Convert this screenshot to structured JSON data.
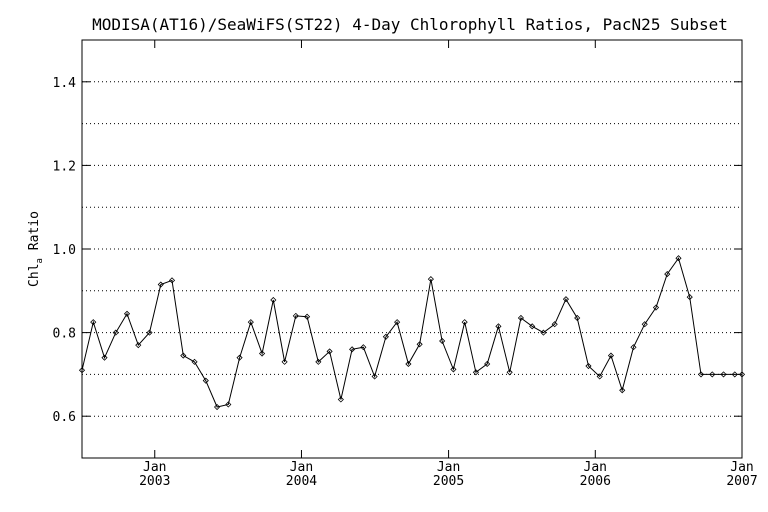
{
  "chart_data": {
    "type": "line",
    "title": "MODISA(AT16)/SeaWiFS(ST22) 4-Day Chlorophyll Ratios, PacN25 Subset",
    "ylabel_main": "Chl",
    "ylabel_sub": "a",
    "ylabel_rest": " Ratio",
    "ylim": [
      0.5,
      1.5
    ],
    "yticks": [
      0.6,
      0.8,
      1.0,
      1.2,
      1.4
    ],
    "ytick_labels": [
      "0.6",
      "0.8",
      "1.0",
      "1.2",
      "1.4"
    ],
    "gridlines": [
      0.6,
      0.7,
      0.8,
      0.9,
      1.0,
      1.1,
      1.2,
      1.3,
      1.4
    ],
    "xlim": [
      "2002-07-04",
      "2007-01-01"
    ],
    "xticks": [
      {
        "date": "2003-01-01",
        "month": "Jan",
        "year": "2003"
      },
      {
        "date": "2004-01-01",
        "month": "Jan",
        "year": "2004"
      },
      {
        "date": "2005-01-01",
        "month": "Jan",
        "year": "2005"
      },
      {
        "date": "2006-01-01",
        "month": "Jan",
        "year": "2006"
      },
      {
        "date": "2007-01-01",
        "month": "Jan",
        "year": "2007"
      }
    ],
    "grid": "horizontal dotted",
    "series": [
      {
        "x": [
          "2002-07-04",
          "2002-08-01",
          "2002-08-29",
          "2002-09-26",
          "2002-10-24",
          "2002-11-21",
          "2002-12-19",
          "2003-01-16",
          "2003-02-13",
          "2003-03-13",
          "2003-04-10",
          "2003-05-08",
          "2003-06-05",
          "2003-07-03",
          "2003-07-31",
          "2003-08-28",
          "2003-09-25",
          "2003-10-23",
          "2003-11-20",
          "2003-12-18",
          "2004-01-15",
          "2004-02-12",
          "2004-03-11",
          "2004-04-08",
          "2004-05-06",
          "2004-06-03",
          "2004-07-01",
          "2004-07-29",
          "2004-08-26",
          "2004-09-23",
          "2004-10-21",
          "2004-11-18",
          "2004-12-16",
          "2005-01-13",
          "2005-02-10",
          "2005-03-10",
          "2005-04-07",
          "2005-05-05",
          "2005-06-02",
          "2005-06-30",
          "2005-07-28",
          "2005-08-25",
          "2005-09-22",
          "2005-10-20",
          "2005-11-17",
          "2005-12-15",
          "2006-01-12",
          "2006-02-09",
          "2006-03-09",
          "2006-04-06",
          "2006-05-04",
          "2006-06-01",
          "2006-06-29",
          "2006-07-27",
          "2006-08-24",
          "2006-09-21",
          "2006-10-19",
          "2006-11-16",
          "2006-12-14",
          "2007-01-01"
        ],
        "values": [
          0.71,
          0.825,
          0.74,
          0.8,
          0.845,
          0.77,
          0.8,
          0.915,
          0.925,
          0.745,
          0.73,
          0.685,
          0.622,
          0.628,
          0.74,
          0.825,
          0.75,
          0.878,
          0.73,
          0.84,
          0.838,
          0.73,
          0.755,
          0.64,
          0.76,
          0.765,
          0.695,
          0.79,
          0.825,
          0.725,
          0.772,
          0.928,
          0.78,
          0.712,
          0.825,
          0.705,
          0.725,
          0.815,
          0.705,
          0.835,
          0.815,
          0.8,
          0.82,
          0.88,
          0.835,
          0.72,
          0.695,
          0.745,
          0.662,
          0.765,
          0.82,
          0.86,
          0.94,
          0.978,
          0.885,
          0.7,
          0.7,
          0.7,
          0.7,
          0.7
        ]
      }
    ]
  }
}
